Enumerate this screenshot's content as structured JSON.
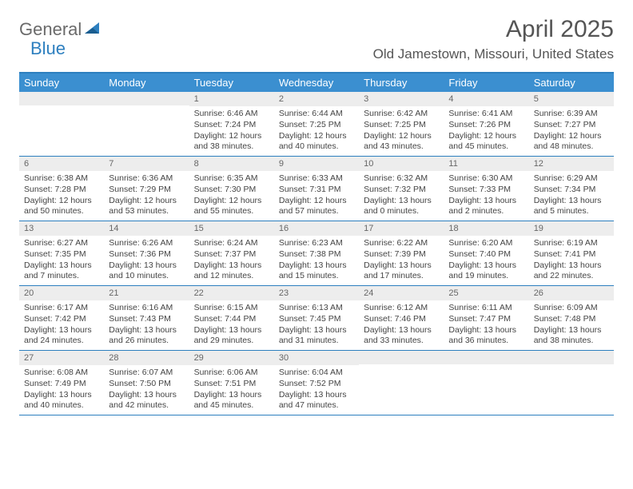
{
  "logo": {
    "part1": "General",
    "part2": "Blue"
  },
  "title": "April 2025",
  "location": "Old Jamestown, Missouri, United States",
  "header_bg": "#3b8fd0",
  "border_color": "#2d7fbf",
  "daynum_bg": "#ededed",
  "text_color": "#444444",
  "days": [
    "Sunday",
    "Monday",
    "Tuesday",
    "Wednesday",
    "Thursday",
    "Friday",
    "Saturday"
  ],
  "weeks": [
    [
      {
        "n": "",
        "sr": "",
        "ss": "",
        "dl": ""
      },
      {
        "n": "",
        "sr": "",
        "ss": "",
        "dl": ""
      },
      {
        "n": "1",
        "sr": "Sunrise: 6:46 AM",
        "ss": "Sunset: 7:24 PM",
        "dl": "Daylight: 12 hours and 38 minutes."
      },
      {
        "n": "2",
        "sr": "Sunrise: 6:44 AM",
        "ss": "Sunset: 7:25 PM",
        "dl": "Daylight: 12 hours and 40 minutes."
      },
      {
        "n": "3",
        "sr": "Sunrise: 6:42 AM",
        "ss": "Sunset: 7:25 PM",
        "dl": "Daylight: 12 hours and 43 minutes."
      },
      {
        "n": "4",
        "sr": "Sunrise: 6:41 AM",
        "ss": "Sunset: 7:26 PM",
        "dl": "Daylight: 12 hours and 45 minutes."
      },
      {
        "n": "5",
        "sr": "Sunrise: 6:39 AM",
        "ss": "Sunset: 7:27 PM",
        "dl": "Daylight: 12 hours and 48 minutes."
      }
    ],
    [
      {
        "n": "6",
        "sr": "Sunrise: 6:38 AM",
        "ss": "Sunset: 7:28 PM",
        "dl": "Daylight: 12 hours and 50 minutes."
      },
      {
        "n": "7",
        "sr": "Sunrise: 6:36 AM",
        "ss": "Sunset: 7:29 PM",
        "dl": "Daylight: 12 hours and 53 minutes."
      },
      {
        "n": "8",
        "sr": "Sunrise: 6:35 AM",
        "ss": "Sunset: 7:30 PM",
        "dl": "Daylight: 12 hours and 55 minutes."
      },
      {
        "n": "9",
        "sr": "Sunrise: 6:33 AM",
        "ss": "Sunset: 7:31 PM",
        "dl": "Daylight: 12 hours and 57 minutes."
      },
      {
        "n": "10",
        "sr": "Sunrise: 6:32 AM",
        "ss": "Sunset: 7:32 PM",
        "dl": "Daylight: 13 hours and 0 minutes."
      },
      {
        "n": "11",
        "sr": "Sunrise: 6:30 AM",
        "ss": "Sunset: 7:33 PM",
        "dl": "Daylight: 13 hours and 2 minutes."
      },
      {
        "n": "12",
        "sr": "Sunrise: 6:29 AM",
        "ss": "Sunset: 7:34 PM",
        "dl": "Daylight: 13 hours and 5 minutes."
      }
    ],
    [
      {
        "n": "13",
        "sr": "Sunrise: 6:27 AM",
        "ss": "Sunset: 7:35 PM",
        "dl": "Daylight: 13 hours and 7 minutes."
      },
      {
        "n": "14",
        "sr": "Sunrise: 6:26 AM",
        "ss": "Sunset: 7:36 PM",
        "dl": "Daylight: 13 hours and 10 minutes."
      },
      {
        "n": "15",
        "sr": "Sunrise: 6:24 AM",
        "ss": "Sunset: 7:37 PM",
        "dl": "Daylight: 13 hours and 12 minutes."
      },
      {
        "n": "16",
        "sr": "Sunrise: 6:23 AM",
        "ss": "Sunset: 7:38 PM",
        "dl": "Daylight: 13 hours and 15 minutes."
      },
      {
        "n": "17",
        "sr": "Sunrise: 6:22 AM",
        "ss": "Sunset: 7:39 PM",
        "dl": "Daylight: 13 hours and 17 minutes."
      },
      {
        "n": "18",
        "sr": "Sunrise: 6:20 AM",
        "ss": "Sunset: 7:40 PM",
        "dl": "Daylight: 13 hours and 19 minutes."
      },
      {
        "n": "19",
        "sr": "Sunrise: 6:19 AM",
        "ss": "Sunset: 7:41 PM",
        "dl": "Daylight: 13 hours and 22 minutes."
      }
    ],
    [
      {
        "n": "20",
        "sr": "Sunrise: 6:17 AM",
        "ss": "Sunset: 7:42 PM",
        "dl": "Daylight: 13 hours and 24 minutes."
      },
      {
        "n": "21",
        "sr": "Sunrise: 6:16 AM",
        "ss": "Sunset: 7:43 PM",
        "dl": "Daylight: 13 hours and 26 minutes."
      },
      {
        "n": "22",
        "sr": "Sunrise: 6:15 AM",
        "ss": "Sunset: 7:44 PM",
        "dl": "Daylight: 13 hours and 29 minutes."
      },
      {
        "n": "23",
        "sr": "Sunrise: 6:13 AM",
        "ss": "Sunset: 7:45 PM",
        "dl": "Daylight: 13 hours and 31 minutes."
      },
      {
        "n": "24",
        "sr": "Sunrise: 6:12 AM",
        "ss": "Sunset: 7:46 PM",
        "dl": "Daylight: 13 hours and 33 minutes."
      },
      {
        "n": "25",
        "sr": "Sunrise: 6:11 AM",
        "ss": "Sunset: 7:47 PM",
        "dl": "Daylight: 13 hours and 36 minutes."
      },
      {
        "n": "26",
        "sr": "Sunrise: 6:09 AM",
        "ss": "Sunset: 7:48 PM",
        "dl": "Daylight: 13 hours and 38 minutes."
      }
    ],
    [
      {
        "n": "27",
        "sr": "Sunrise: 6:08 AM",
        "ss": "Sunset: 7:49 PM",
        "dl": "Daylight: 13 hours and 40 minutes."
      },
      {
        "n": "28",
        "sr": "Sunrise: 6:07 AM",
        "ss": "Sunset: 7:50 PM",
        "dl": "Daylight: 13 hours and 42 minutes."
      },
      {
        "n": "29",
        "sr": "Sunrise: 6:06 AM",
        "ss": "Sunset: 7:51 PM",
        "dl": "Daylight: 13 hours and 45 minutes."
      },
      {
        "n": "30",
        "sr": "Sunrise: 6:04 AM",
        "ss": "Sunset: 7:52 PM",
        "dl": "Daylight: 13 hours and 47 minutes."
      },
      {
        "n": "",
        "sr": "",
        "ss": "",
        "dl": ""
      },
      {
        "n": "",
        "sr": "",
        "ss": "",
        "dl": ""
      },
      {
        "n": "",
        "sr": "",
        "ss": "",
        "dl": ""
      }
    ]
  ]
}
